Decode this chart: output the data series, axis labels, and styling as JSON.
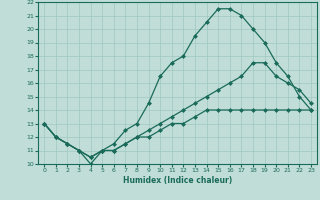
{
  "title": "",
  "xlabel": "Humidex (Indice chaleur)",
  "bg_color": "#c0ddd8",
  "line_color": "#1a6b5a",
  "grid_color": "#9ec8c0",
  "xlim": [
    -0.5,
    23.5
  ],
  "ylim": [
    10,
    22
  ],
  "yticks": [
    10,
    11,
    12,
    13,
    14,
    15,
    16,
    17,
    18,
    19,
    20,
    21,
    22
  ],
  "xticks": [
    0,
    1,
    2,
    3,
    4,
    5,
    6,
    7,
    8,
    9,
    10,
    11,
    12,
    13,
    14,
    15,
    16,
    17,
    18,
    19,
    20,
    21,
    22,
    23
  ],
  "line1_x": [
    0,
    1,
    2,
    3,
    4,
    5,
    6,
    7,
    8,
    9,
    10,
    11,
    12,
    13,
    14,
    15,
    16,
    17,
    18,
    19,
    20,
    21,
    22,
    23
  ],
  "line1_y": [
    13,
    12,
    11.5,
    11,
    10,
    11,
    11.5,
    12.5,
    13,
    14.5,
    16.5,
    17.5,
    18,
    19.5,
    20.5,
    21.5,
    21.5,
    21,
    20,
    19,
    17.5,
    16.5,
    15,
    14
  ],
  "line2_x": [
    0,
    1,
    2,
    3,
    4,
    5,
    6,
    7,
    8,
    9,
    10,
    11,
    12,
    13,
    14,
    15,
    16,
    17,
    18,
    19,
    20,
    21,
    22,
    23
  ],
  "line2_y": [
    13,
    12,
    11.5,
    11,
    10.5,
    11,
    11,
    11.5,
    12,
    12.5,
    13,
    13.5,
    14,
    14.5,
    15,
    15.5,
    16,
    16.5,
    17.5,
    17.5,
    16.5,
    16,
    15.5,
    14.5
  ],
  "line3_x": [
    0,
    1,
    2,
    3,
    4,
    5,
    6,
    7,
    8,
    9,
    10,
    11,
    12,
    13,
    14,
    15,
    16,
    17,
    18,
    19,
    20,
    21,
    22,
    23
  ],
  "line3_y": [
    13,
    12,
    11.5,
    11,
    10.5,
    11,
    11,
    11.5,
    12,
    12,
    12.5,
    13,
    13,
    13.5,
    14,
    14,
    14,
    14,
    14,
    14,
    14,
    14,
    14,
    14
  ]
}
